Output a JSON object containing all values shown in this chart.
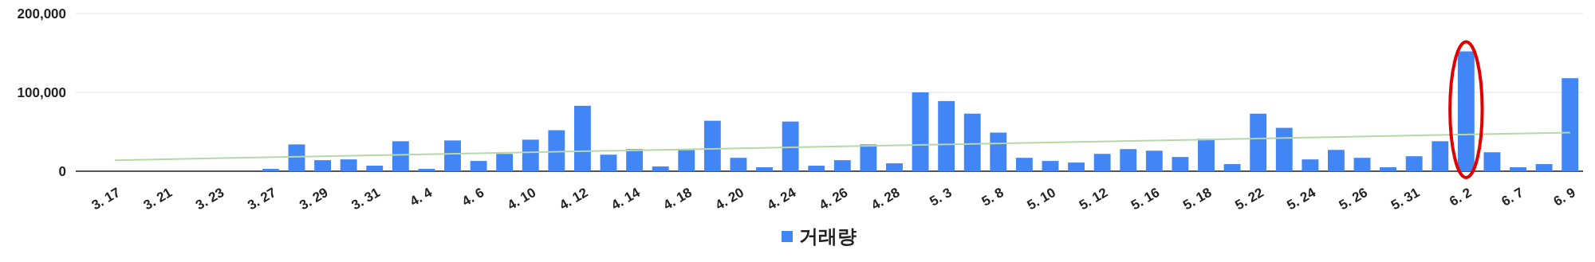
{
  "chart_data": {
    "type": "bar",
    "categories": [
      null,
      "3. 17",
      null,
      "3. 21",
      null,
      "3. 23",
      null,
      "3. 27",
      null,
      "3. 29",
      null,
      "3. 31",
      null,
      "4. 4",
      null,
      "4. 6",
      null,
      "4. 10",
      null,
      "4. 12",
      null,
      "4. 14",
      null,
      "4. 18",
      null,
      "4. 20",
      null,
      "4. 24",
      null,
      "4. 26",
      null,
      "4. 28",
      null,
      "5. 3",
      null,
      "5. 8",
      null,
      "5. 10",
      null,
      "5. 12",
      null,
      "5. 16",
      null,
      "5. 18",
      null,
      "5. 22",
      null,
      "5. 24",
      null,
      "5. 26",
      null,
      "5. 31",
      null,
      "6. 2",
      null,
      "6. 7",
      null,
      "6. 9"
    ],
    "series": [
      {
        "name": "거래량",
        "color": "#4285f4",
        "values": [
          0,
          0,
          0,
          0,
          0,
          0,
          0,
          3000,
          34000,
          14000,
          15000,
          7000,
          38000,
          3000,
          39000,
          13000,
          22000,
          40000,
          52000,
          83000,
          21000,
          28000,
          6000,
          27000,
          64000,
          17000,
          5000,
          63000,
          7000,
          14000,
          34000,
          10000,
          100000,
          89000,
          73000,
          49000,
          17000,
          13000,
          11000,
          22000,
          28000,
          26000,
          18000,
          41000,
          9000,
          73000,
          55000,
          15000,
          27000,
          17000,
          5000,
          19000,
          38000,
          152000,
          24000,
          5000,
          9000,
          118000
        ]
      },
      {
        "type": "line",
        "color": "#b6d7a8",
        "x": [
          "3. 17",
          "6. 9"
        ],
        "values": [
          14000,
          49000
        ]
      }
    ],
    "ylim": [
      0,
      200000
    ],
    "yticks": [
      {
        "value": 0,
        "label": "0"
      },
      {
        "value": 100000,
        "label": "100,000"
      },
      {
        "value": 200000,
        "label": "200,000"
      }
    ],
    "grid": "y",
    "legend": "bottom"
  }
}
